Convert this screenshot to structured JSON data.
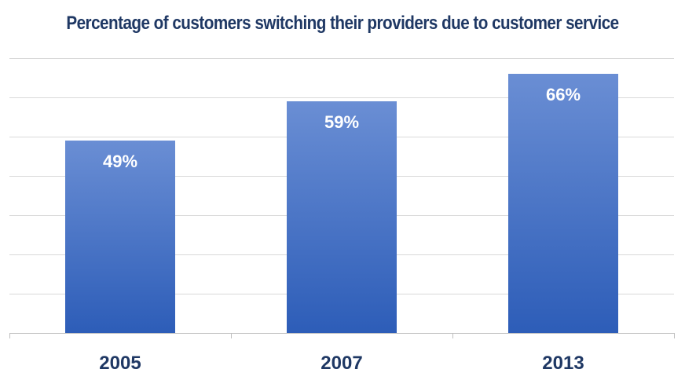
{
  "colors": {
    "title": "#1f3864",
    "bar_top": "#6a8ed4",
    "bar_bottom": "#2d5db8",
    "grid": "#d9d9d9",
    "axis": "#bfbfbf",
    "label": "#1f3864",
    "value_label": "#ffffff"
  },
  "chart_data": {
    "type": "bar",
    "title": "Percentage of customers switching their providers due to customer service",
    "xlabel": "",
    "ylabel": "",
    "categories": [
      "2005",
      "2007",
      "2013"
    ],
    "values": [
      49,
      59,
      66
    ],
    "data_labels": [
      "49%",
      "59%",
      "66%"
    ],
    "ylim": [
      0,
      70
    ],
    "grid": true,
    "legend": "none"
  }
}
